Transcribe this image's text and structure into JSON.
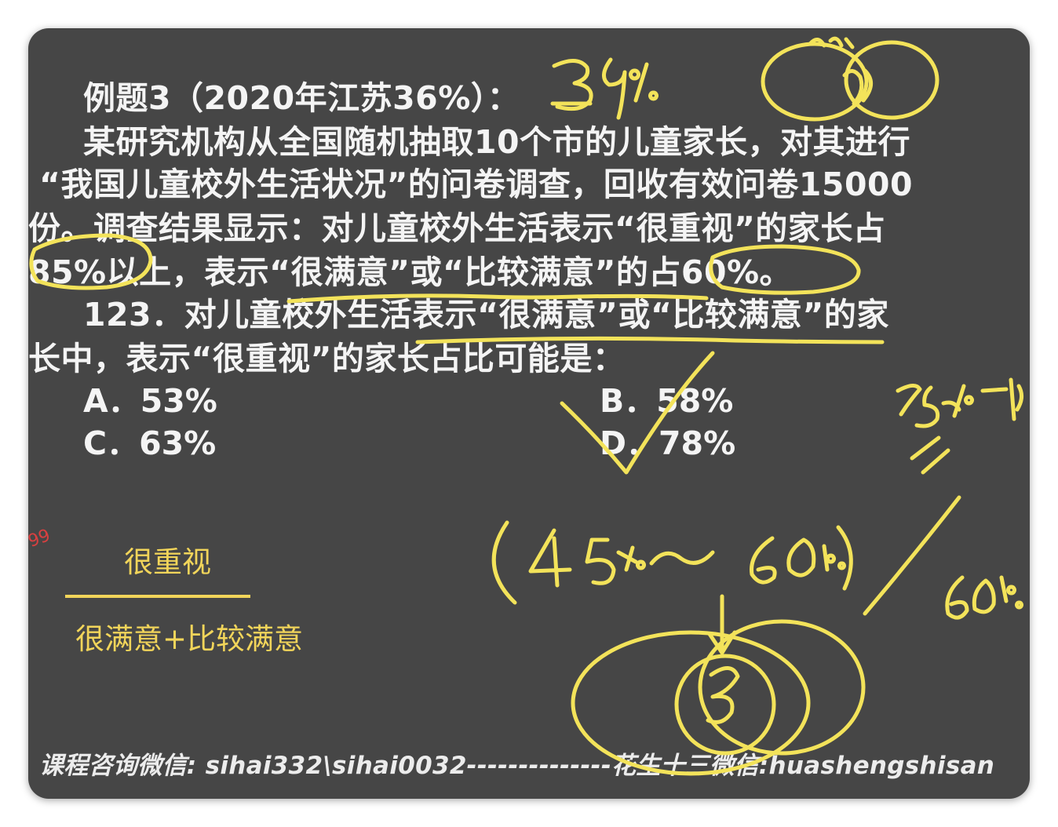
{
  "problem": {
    "header": "例题3（2020年江苏36%）：",
    "lines": [
      "某研究机构从全国随机抽取10个市的儿童家长，对其进行",
      "“我国儿童校外生活状况”的问卷调查，回收有效问卷15000",
      "份。调查结果显示：对儿童校外生活表示“很重视”的家长占",
      "85%以上，表示“很满意”或“比较满意”的占60%。"
    ],
    "question": [
      "123．对儿童校外生活表示“很满意”或“比较满意”的家",
      "长中，表示“很重视”的家长占比可能是："
    ],
    "options": {
      "a": "A．53%",
      "b": "B．58%",
      "c": "C．63%",
      "d": "D．78%"
    }
  },
  "notes": {
    "numerator": "很重视",
    "denominator": "很满意+比较满意"
  },
  "stray_mark": "99",
  "footer": "课程咨询微信: sihai332\\sihai0032--------------花生十三微信:huashengshisan",
  "colors": {
    "board": "#464646",
    "text": "#f4f4f4",
    "ink": "#f3e35a"
  }
}
